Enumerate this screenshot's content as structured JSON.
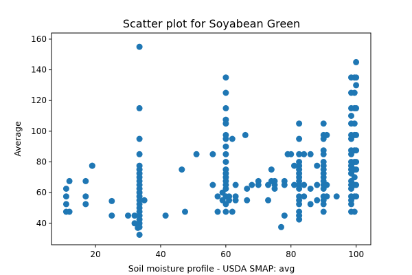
{
  "chart_data": {
    "type": "scatter",
    "title": "Scatter plot for Soyabean Green",
    "xlabel": "Soil moisture profile - USDA SMAP: avg",
    "ylabel": "Average",
    "xlim": [
      6.5,
      104.5
    ],
    "ylim": [
      26,
      164
    ],
    "xticks": [
      20,
      40,
      60,
      80,
      100
    ],
    "yticks": [
      40,
      60,
      80,
      100,
      120,
      140,
      160
    ],
    "grid": false,
    "marker_color": "#1f77b4",
    "series": [
      {
        "points": [
          [
            11,
            62.5
          ],
          [
            11,
            57.5
          ],
          [
            11,
            52.5
          ],
          [
            11,
            47.5
          ],
          [
            12,
            67.5
          ],
          [
            12,
            47.5
          ],
          [
            17,
            67.5
          ],
          [
            17,
            57.5
          ],
          [
            17,
            52.5
          ],
          [
            19,
            77.5
          ],
          [
            19,
            77.5
          ],
          [
            25,
            54.5
          ],
          [
            25,
            45
          ],
          [
            30,
            45
          ],
          [
            32,
            45
          ],
          [
            32,
            40
          ],
          [
            33,
            37
          ],
          [
            33.5,
            155
          ],
          [
            33.5,
            115
          ],
          [
            33.5,
            95
          ],
          [
            33.5,
            85
          ],
          [
            33.5,
            77.5
          ],
          [
            33.5,
            75
          ],
          [
            33.5,
            72.5
          ],
          [
            33.5,
            70
          ],
          [
            33.5,
            67.5
          ],
          [
            33.5,
            65
          ],
          [
            33.5,
            62.5
          ],
          [
            33.5,
            60
          ],
          [
            33.5,
            57.5
          ],
          [
            33.5,
            55
          ],
          [
            33.5,
            52.5
          ],
          [
            33.5,
            50
          ],
          [
            33.5,
            47.5
          ],
          [
            33.5,
            45
          ],
          [
            33.5,
            42.5
          ],
          [
            33.5,
            40
          ],
          [
            33.5,
            37.5
          ],
          [
            33.5,
            32.5
          ],
          [
            35,
            55
          ],
          [
            41.5,
            45
          ],
          [
            46.5,
            75
          ],
          [
            47.5,
            47.5
          ],
          [
            51,
            85
          ],
          [
            56,
            85
          ],
          [
            56,
            65
          ],
          [
            57.5,
            57.5
          ],
          [
            57.5,
            47.5
          ],
          [
            59,
            60
          ],
          [
            59,
            55
          ],
          [
            60,
            135
          ],
          [
            60,
            125
          ],
          [
            60,
            115
          ],
          [
            60,
            107.5
          ],
          [
            60,
            105
          ],
          [
            60,
            97.5
          ],
          [
            60,
            95
          ],
          [
            60,
            90
          ],
          [
            60,
            85
          ],
          [
            60,
            80
          ],
          [
            60,
            75
          ],
          [
            60,
            72.5
          ],
          [
            60,
            70
          ],
          [
            60,
            67.5
          ],
          [
            60,
            65
          ],
          [
            60,
            62.5
          ],
          [
            60,
            57.5
          ],
          [
            60,
            52.5
          ],
          [
            60,
            47.5
          ],
          [
            61,
            57.5
          ],
          [
            61,
            55
          ],
          [
            62,
            95
          ],
          [
            62,
            47.5
          ],
          [
            63,
            65
          ],
          [
            63,
            57.5
          ],
          [
            63,
            55
          ],
          [
            66,
            97.5
          ],
          [
            66.5,
            62.5
          ],
          [
            66.5,
            55
          ],
          [
            68,
            65
          ],
          [
            70,
            67.5
          ],
          [
            70,
            65
          ],
          [
            73,
            65
          ],
          [
            73,
            55
          ],
          [
            74,
            75
          ],
          [
            74,
            67.5
          ],
          [
            75,
            65
          ],
          [
            75,
            62.5
          ],
          [
            75,
            67.5
          ],
          [
            77,
            37.5
          ],
          [
            78,
            67.5
          ],
          [
            78,
            65
          ],
          [
            78,
            45
          ],
          [
            79,
            85
          ],
          [
            80,
            85
          ],
          [
            81,
            77.5
          ],
          [
            81,
            65
          ],
          [
            82.5,
            105
          ],
          [
            82.5,
            95
          ],
          [
            82.5,
            85
          ],
          [
            82.5,
            80
          ],
          [
            82.5,
            77.5
          ],
          [
            82.5,
            75
          ],
          [
            82.5,
            72.5
          ],
          [
            82.5,
            70
          ],
          [
            82.5,
            67.5
          ],
          [
            82.5,
            65
          ],
          [
            82.5,
            62.5
          ],
          [
            82.5,
            57.5
          ],
          [
            82.5,
            55
          ],
          [
            82.5,
            52.5
          ],
          [
            82.5,
            47.5
          ],
          [
            82.5,
            45
          ],
          [
            82.5,
            42.5
          ],
          [
            84,
            85
          ],
          [
            84,
            65
          ],
          [
            84,
            57.5
          ],
          [
            86,
            85
          ],
          [
            86,
            62.5
          ],
          [
            86,
            52.5
          ],
          [
            88,
            77.5
          ],
          [
            88,
            65
          ],
          [
            88,
            55
          ],
          [
            90,
            105
          ],
          [
            90,
            97.5
          ],
          [
            90,
            95
          ],
          [
            90,
            87.5
          ],
          [
            90,
            85
          ],
          [
            90,
            80
          ],
          [
            90,
            77.5
          ],
          [
            90,
            75
          ],
          [
            90,
            72.5
          ],
          [
            90,
            70
          ],
          [
            90,
            67.5
          ],
          [
            90,
            65
          ],
          [
            90,
            62.5
          ],
          [
            90,
            57.5
          ],
          [
            90,
            55
          ],
          [
            90,
            52.5
          ],
          [
            90,
            47.5
          ],
          [
            91,
            97.5
          ],
          [
            91,
            65
          ],
          [
            91,
            57.5
          ],
          [
            94,
            57.5
          ],
          [
            98.5,
            135
          ],
          [
            98.5,
            125
          ],
          [
            98.5,
            115
          ],
          [
            98.5,
            110
          ],
          [
            98.5,
            105
          ],
          [
            98.5,
            97.5
          ],
          [
            98.5,
            95
          ],
          [
            98.5,
            87.5
          ],
          [
            98.5,
            85
          ],
          [
            98.5,
            80
          ],
          [
            98.5,
            77.5
          ],
          [
            98.5,
            75
          ],
          [
            98.5,
            72.5
          ],
          [
            98.5,
            67.5
          ],
          [
            98.5,
            65
          ],
          [
            98.5,
            62.5
          ],
          [
            98.5,
            57.5
          ],
          [
            98.5,
            55
          ],
          [
            98.5,
            52.5
          ],
          [
            98.5,
            47.5
          ],
          [
            99.5,
            135
          ],
          [
            99.5,
            125
          ],
          [
            99.5,
            115
          ],
          [
            99.5,
            105
          ],
          [
            99.5,
            97.5
          ],
          [
            99.5,
            87.5
          ],
          [
            99.5,
            80
          ],
          [
            99.5,
            75
          ],
          [
            99.5,
            70
          ],
          [
            99.5,
            65
          ],
          [
            99.5,
            57.5
          ],
          [
            99.5,
            47.5
          ],
          [
            100,
            145
          ],
          [
            100,
            135
          ],
          [
            100,
            130
          ],
          [
            100,
            115
          ],
          [
            100,
            97.5
          ],
          [
            100,
            87.5
          ],
          [
            100,
            80
          ],
          [
            100,
            75
          ],
          [
            100,
            65
          ],
          [
            100,
            57.5
          ]
        ]
      }
    ]
  }
}
